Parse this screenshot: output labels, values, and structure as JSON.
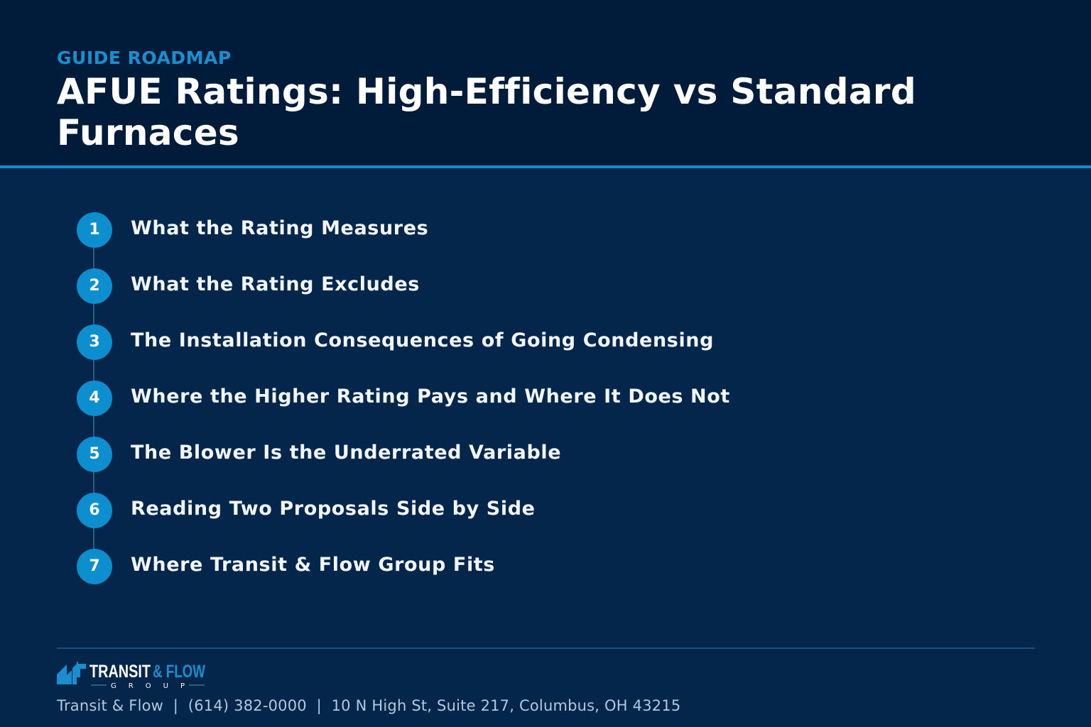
{
  "header": {
    "eyebrow": "GUIDE ROADMAP",
    "title": "AFUE Ratings: High-Efficiency vs Standard Furnaces"
  },
  "steps": [
    {
      "number": "1",
      "label": "What the Rating Measures"
    },
    {
      "number": "2",
      "label": "What the Rating Excludes"
    },
    {
      "number": "3",
      "label": "The Installation Consequences of Going Condensing"
    },
    {
      "number": "4",
      "label": "Where the Higher Rating Pays and Where It Does Not"
    },
    {
      "number": "5",
      "label": "The Blower Is the Underrated Variable"
    },
    {
      "number": "6",
      "label": "Reading Two Proposals Side by Side"
    },
    {
      "number": "7",
      "label": "Where Transit & Flow Group Fits"
    }
  ],
  "footer": {
    "logo": {
      "word1": "TRANSIT",
      "word2": "& FLOW",
      "tagline": "G R O U P"
    },
    "contact": "Transit & Flow  |  (614) 382-0000  |  10 N High St, Suite 217, Columbus, OH 43215"
  },
  "colors": {
    "background": "#03264a",
    "header_background": "#011c3a",
    "accent": "#0d8fcf",
    "text": "#ffffff",
    "muted_text": "#b4c8de"
  },
  "icons": {
    "logo_mark": "building-bars-icon"
  }
}
